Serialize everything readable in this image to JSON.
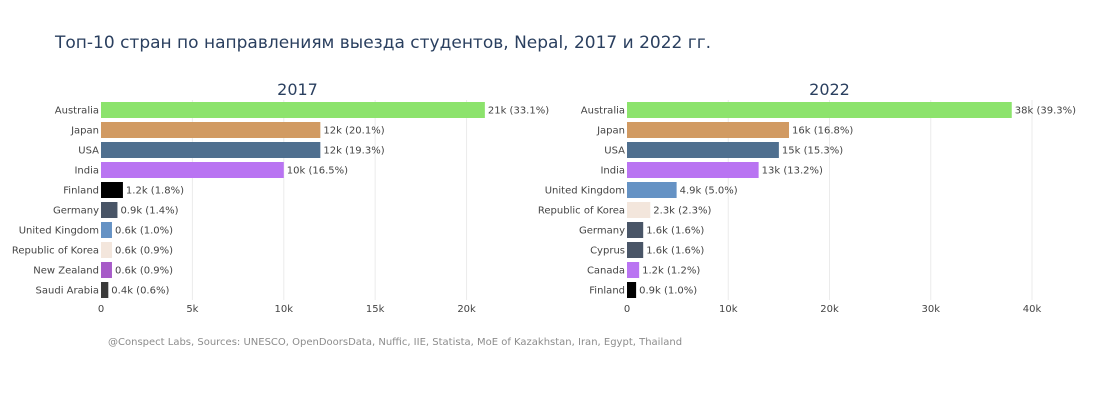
{
  "title": "Топ-10 стран по направлениям выезда студентов, Nepal, 2017 и 2022 гг.",
  "source": "@Conspect Labs, Sources: UNESCO, OpenDoorsData, Nuffic, IIE, Statista, MoE of Kazakhstan, Iran, Egypt, Thailand",
  "chart_data": [
    {
      "type": "bar",
      "orientation": "horizontal",
      "title": "2017",
      "categories": [
        "Australia",
        "Japan",
        "USA",
        "India",
        "Finland",
        "Germany",
        "United Kingdom",
        "Republic of Korea",
        "New Zealand",
        "Saudi Arabia"
      ],
      "values": [
        21000,
        12000,
        12000,
        10000,
        1200,
        900,
        600,
        600,
        600,
        400
      ],
      "data_labels": [
        "21k (33.1%)",
        "12k (20.1%)",
        "12k (19.3%)",
        "10k (16.5%)",
        "1.2k (1.8%)",
        "0.9k (1.4%)",
        "0.6k (1.0%)",
        "0.6k (0.9%)",
        "0.6k (0.9%)",
        "0.4k (0.6%)"
      ],
      "colors": [
        "#8ce36c",
        "#d19a62",
        "#4f6f8f",
        "#b974f2",
        "#000000",
        "#495567",
        "#6592c4",
        "#f3e6dc",
        "#a75bc8",
        "#3b3b3b"
      ],
      "xlim": [
        0,
        21500
      ],
      "xticks": [
        0,
        5000,
        10000,
        15000,
        20000
      ],
      "xtick_labels": [
        "0",
        "5k",
        "10k",
        "15k",
        "20k"
      ]
    },
    {
      "type": "bar",
      "orientation": "horizontal",
      "title": "2022",
      "categories": [
        "Australia",
        "Japan",
        "USA",
        "India",
        "United Kingdom",
        "Republic of Korea",
        "Germany",
        "Cyprus",
        "Canada",
        "Finland"
      ],
      "values": [
        38000,
        16000,
        15000,
        13000,
        4900,
        2300,
        1600,
        1600,
        1200,
        900
      ],
      "data_labels": [
        "38k (39.3%)",
        "16k (16.8%)",
        "15k (15.3%)",
        "13k (13.2%)",
        "4.9k (5.0%)",
        "2.3k (2.3%)",
        "1.6k (1.6%)",
        "1.6k (1.6%)",
        "1.2k (1.2%)",
        "0.9k (1.0%)"
      ],
      "colors": [
        "#8ce36c",
        "#d19a62",
        "#4f6f8f",
        "#b974f2",
        "#6592c4",
        "#f3e6dc",
        "#495567",
        "#495567",
        "#b974f2",
        "#000000"
      ],
      "xlim": [
        0,
        40000
      ],
      "xticks": [
        0,
        10000,
        20000,
        30000,
        40000
      ],
      "xtick_labels": [
        "0",
        "10k",
        "20k",
        "30k",
        "40k"
      ]
    }
  ]
}
